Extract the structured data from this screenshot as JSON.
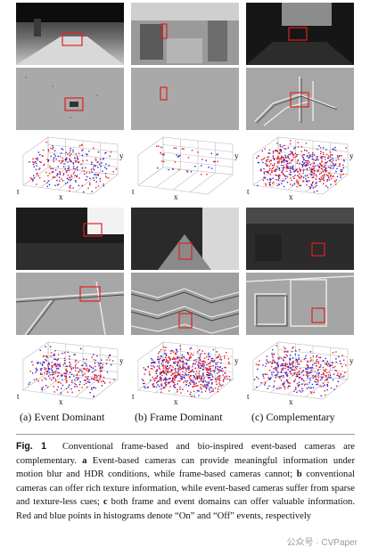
{
  "figure": {
    "subcaptions": [
      "(a) Event Dominant",
      "(b) Frame Dominant",
      "(c) Complementary"
    ],
    "axis_labels": {
      "t": "t",
      "x": "x",
      "y": "y"
    },
    "caption": {
      "label": "Fig. 1",
      "seg1": "Conventional frame-based and bio-inspired event-based cameras are complementary.",
      "mark_a": "a",
      "seg2": "Event-based cameras can provide meaningful information under motion blur and HDR conditions, while frame-based cameras cannot;",
      "mark_b": "b",
      "seg3": "conventional cameras can offer rich texture information, while event-based cameras suffer from sparse and texture-less cues;",
      "mark_c": "c",
      "seg4": "both frame and event domains can offer valuable information. Red and blue points in histograms denote “On” and “Off” events, respectively"
    },
    "watermark": "公众号 · CVPaper",
    "colors": {
      "on_event": "#ee1111",
      "off_event": "#2222dd",
      "box": "#e02020"
    }
  }
}
